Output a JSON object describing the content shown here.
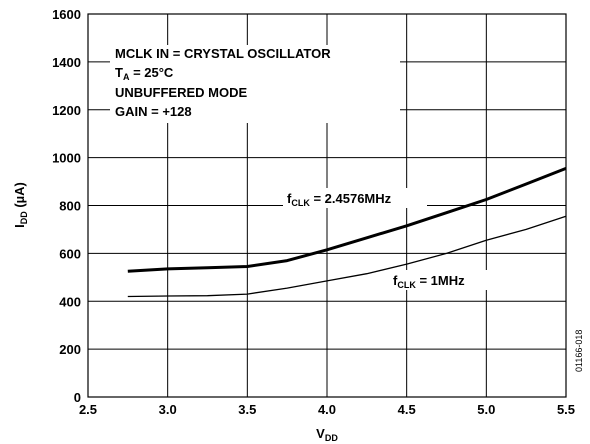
{
  "chart_data": {
    "type": "line",
    "xlabel": "V_DD",
    "ylabel": "I_DD (µA)",
    "xlim": [
      2.5,
      5.5
    ],
    "ylim": [
      0,
      1600
    ],
    "x_ticks": [
      "2.5",
      "3.0",
      "3.5",
      "4.0",
      "4.5",
      "5.0",
      "5.5"
    ],
    "y_ticks": [
      "0",
      "200",
      "400",
      "600",
      "800",
      "1000",
      "1200",
      "1400",
      "1600"
    ],
    "grid": true,
    "annotations": [
      "MCLK IN = CRYSTAL OSCILLATOR",
      "T_A = 25°C",
      "UNBUFFERED MODE",
      "GAIN = +128"
    ],
    "series": [
      {
        "name": "f_CLK = 2.4576MHz",
        "x": [
          2.75,
          3.0,
          3.25,
          3.5,
          3.75,
          4.0,
          4.25,
          4.5,
          4.75,
          5.0,
          5.25,
          5.5
        ],
        "y": [
          525,
          535,
          540,
          545,
          570,
          615,
          665,
          715,
          770,
          825,
          890,
          955
        ]
      },
      {
        "name": "f_CLK = 1MHz",
        "x": [
          2.75,
          3.0,
          3.25,
          3.5,
          3.75,
          4.0,
          4.25,
          4.5,
          4.75,
          5.0,
          5.25,
          5.5
        ],
        "y": [
          420,
          422,
          423,
          430,
          455,
          485,
          515,
          555,
          600,
          655,
          700,
          755
        ]
      }
    ],
    "figure_id": "01166-018"
  }
}
